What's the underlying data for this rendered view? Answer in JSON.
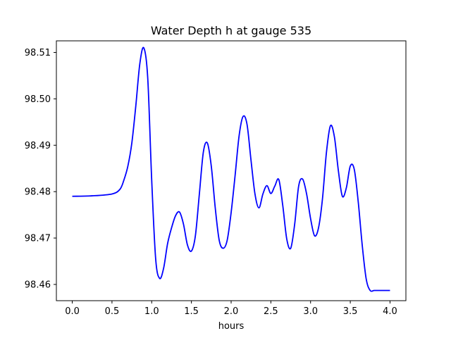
{
  "chart_data": {
    "type": "line",
    "title": "Water Depth h at gauge 535",
    "xlabel": "hours",
    "ylabel": "",
    "xlim": [
      -0.2,
      4.2
    ],
    "ylim": [
      98.4565,
      98.5125
    ],
    "xticks": [
      0.0,
      0.5,
      1.0,
      1.5,
      2.0,
      2.5,
      3.0,
      3.5,
      4.0
    ],
    "xtick_labels": [
      "0.0",
      "0.5",
      "1.0",
      "1.5",
      "2.0",
      "2.5",
      "3.0",
      "3.5",
      "4.0"
    ],
    "yticks": [
      98.46,
      98.47,
      98.48,
      98.49,
      98.5,
      98.51
    ],
    "ytick_labels": [
      "98.46",
      "98.47",
      "98.48",
      "98.49",
      "98.50",
      "98.51"
    ],
    "grid": false,
    "series": [
      {
        "color": "#0000ff",
        "x": [
          0.0,
          0.25,
          0.5,
          0.6,
          0.65,
          0.7,
          0.75,
          0.8,
          0.85,
          0.9,
          0.95,
          1.0,
          1.05,
          1.1,
          1.15,
          1.2,
          1.25,
          1.3,
          1.35,
          1.4,
          1.45,
          1.5,
          1.55,
          1.6,
          1.65,
          1.7,
          1.75,
          1.8,
          1.85,
          1.9,
          1.95,
          2.0,
          2.05,
          2.1,
          2.15,
          2.2,
          2.25,
          2.3,
          2.35,
          2.4,
          2.45,
          2.5,
          2.55,
          2.6,
          2.65,
          2.7,
          2.75,
          2.8,
          2.85,
          2.9,
          2.95,
          3.0,
          3.05,
          3.1,
          3.15,
          3.2,
          3.25,
          3.3,
          3.35,
          3.4,
          3.45,
          3.5,
          3.55,
          3.6,
          3.65,
          3.7,
          3.75,
          3.8,
          3.85,
          3.9,
          3.95,
          4.0
        ],
        "y": [
          98.479,
          98.4791,
          98.4795,
          98.4805,
          98.4825,
          98.4855,
          98.4905,
          98.4985,
          98.5075,
          98.511,
          98.5045,
          98.4825,
          98.4655,
          98.4613,
          98.4635,
          98.4688,
          98.4722,
          98.4748,
          98.4756,
          98.473,
          98.4685,
          98.4672,
          98.4705,
          98.4795,
          98.4885,
          98.4905,
          98.4855,
          98.4765,
          98.4695,
          98.4678,
          98.4695,
          98.4755,
          98.4835,
          98.492,
          98.4962,
          98.4945,
          98.4868,
          98.4795,
          98.4765,
          98.4795,
          98.4813,
          98.4796,
          98.4812,
          98.4826,
          98.477,
          98.4698,
          98.4678,
          98.473,
          98.4812,
          98.4827,
          98.4795,
          98.4742,
          98.4705,
          98.4722,
          98.4785,
          98.4885,
          98.4942,
          98.4918,
          98.4845,
          98.479,
          98.4808,
          98.4855,
          98.4848,
          98.4778,
          98.4685,
          98.4612,
          98.4587,
          98.4587,
          98.4587,
          98.4587,
          98.4587,
          98.4587
        ]
      }
    ]
  }
}
